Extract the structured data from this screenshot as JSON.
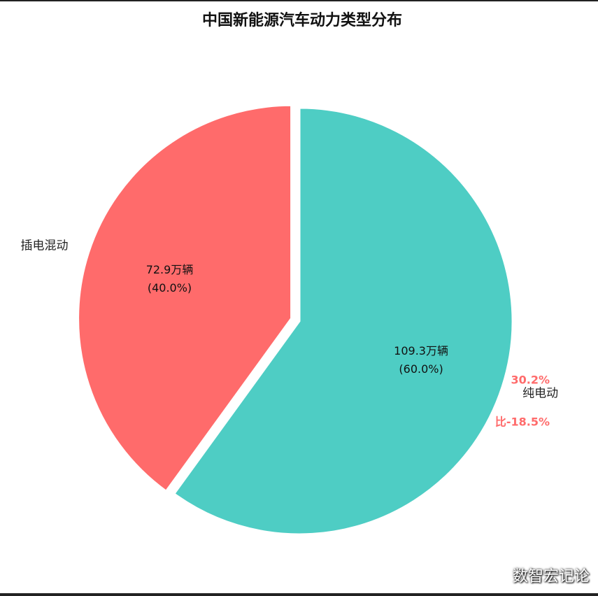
{
  "chart_data": {
    "type": "pie",
    "title": "中国新能源汽车动力类型分布",
    "categories": [
      "纯电动",
      "插电混动"
    ],
    "values": [
      109.3,
      72.9
    ],
    "value_labels": [
      "109.3万辆\n(60.0%)",
      "72.9万辆\n(40.0%)"
    ],
    "colors": [
      "#4ecdc4",
      "#ff6b6b"
    ],
    "explode": [
      0,
      1
    ],
    "annotations": [
      "30.2%",
      "比-18.5%"
    ],
    "watermark": "数智宏记论"
  }
}
